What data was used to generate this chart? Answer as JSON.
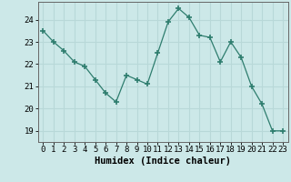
{
  "x": [
    0,
    1,
    2,
    3,
    4,
    5,
    6,
    7,
    8,
    9,
    10,
    11,
    12,
    13,
    14,
    15,
    16,
    17,
    18,
    19,
    20,
    21,
    22,
    23
  ],
  "y": [
    23.5,
    23.0,
    22.6,
    22.1,
    21.9,
    21.3,
    20.7,
    20.3,
    21.5,
    21.3,
    21.1,
    22.5,
    23.9,
    24.5,
    24.1,
    23.3,
    23.2,
    22.1,
    23.0,
    22.3,
    21.0,
    20.2,
    19.0,
    19.0
  ],
  "line_color": "#2e7d6e",
  "marker": "+",
  "marker_size": 4,
  "bg_color": "#cce8e8",
  "grid_color": "#b8d8d8",
  "xlabel": "Humidex (Indice chaleur)",
  "ylim": [
    18.5,
    24.8
  ],
  "xlim": [
    -0.5,
    23.5
  ],
  "yticks": [
    19,
    20,
    21,
    22,
    23,
    24
  ],
  "xticks": [
    0,
    1,
    2,
    3,
    4,
    5,
    6,
    7,
    8,
    9,
    10,
    11,
    12,
    13,
    14,
    15,
    16,
    17,
    18,
    19,
    20,
    21,
    22,
    23
  ],
  "xlabel_fontsize": 7.5,
  "tick_fontsize": 6.5,
  "font_family": "monospace"
}
